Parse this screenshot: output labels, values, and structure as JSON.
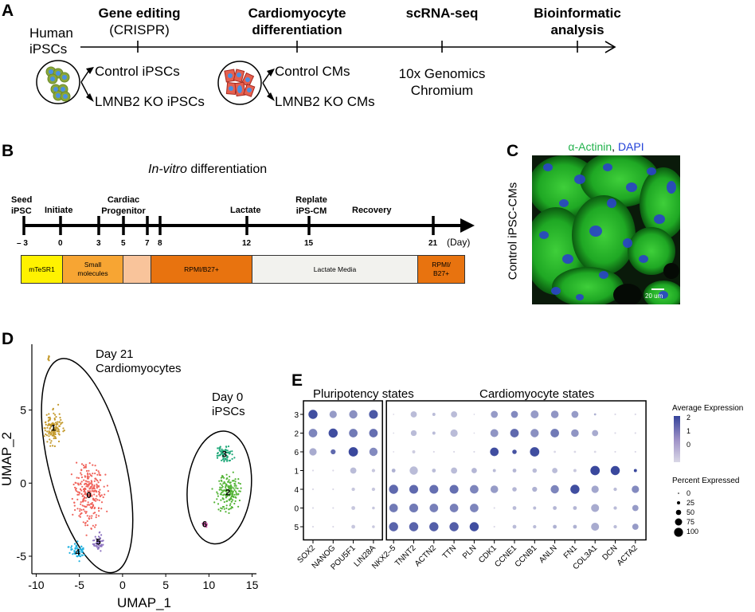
{
  "figure": {
    "panels": [
      "A",
      "B",
      "C",
      "D",
      "E"
    ]
  },
  "panelA": {
    "letter": "A",
    "start_label_1": "Human",
    "start_label_2": "iPSCs",
    "steps": [
      {
        "title_1": "Gene editing",
        "title_2": "(CRISPR)",
        "bold_lines": 1
      },
      {
        "title_1": "Cardiomyocyte",
        "title_2": "differentiation",
        "bold_lines": 2
      },
      {
        "title_1": "scRNA-seq",
        "title_2": "",
        "bold_lines": 1
      },
      {
        "title_1": "Bioinformatic",
        "title_2": "analysis",
        "bold_lines": 2
      }
    ],
    "ipsc_outcomes": [
      "Control iPSCs",
      "LMNB2 KO iPSCs"
    ],
    "cm_outcomes": [
      "Control CMs",
      "LMNB2 KO CMs"
    ],
    "seq_platform_1": "10x Genomics",
    "seq_platform_2": "Chromium"
  },
  "panelB": {
    "letter": "B",
    "title_italic": "In-vitro",
    "title_rest": " differentiation",
    "events": [
      {
        "l1": "Seed",
        "l2": "iPSC"
      },
      {
        "l1": "",
        "l2": "Initiate"
      },
      {
        "l1": "Cardiac",
        "l2": "Progenitor"
      },
      {
        "l1": "",
        "l2": "Lactate"
      },
      {
        "l1": "Replate",
        "l2": "iPS-CM"
      },
      {
        "l1": "",
        "l2": "Recovery"
      }
    ],
    "days": [
      "– 3",
      "0",
      "3",
      "5",
      "7",
      "8",
      "12",
      "15",
      "21"
    ],
    "day_unit": "(Day)",
    "media": [
      {
        "label_1": "mTeSR1",
        "label_2": "",
        "color": "#fff200"
      },
      {
        "label_1": "Small",
        "label_2": "molecules",
        "color": "#f7a533"
      },
      {
        "label_1": "",
        "label_2": "",
        "color": "#f9c49b"
      },
      {
        "label_1": "RPMI/B27+",
        "label_2": "",
        "color": "#e8730f"
      },
      {
        "label_1": "Lactate Media",
        "label_2": "",
        "color": "#f2f2ee"
      },
      {
        "label_1": "RPMI/",
        "label_2": "B27+",
        "color": "#e8730f"
      }
    ]
  },
  "panelC": {
    "letter": "C",
    "stain_1": "α-Actinin",
    "stain_sep": ", ",
    "stain_2": "DAPI",
    "stain_1_color": "#22b24c",
    "stain_2_color": "#1f3fd8",
    "row_label": "Control iPSC-CMs",
    "scale_bar": "20 um"
  },
  "panelD": {
    "letter": "D",
    "group_1_l1": "Day 21",
    "group_1_l2": "Cardiomyocytes",
    "group_2_l1": "Day 0",
    "group_2_l2": "iPSCs"
  },
  "panelE": {
    "letter": "E",
    "group_1": "Pluripotency states",
    "group_2": "Cardiomyocyte states",
    "legend_expr_title": "Average Expression",
    "legend_expr_ticks": [
      "2",
      "1",
      "0"
    ],
    "legend_pct_title": "Percent Expressed",
    "legend_pct_ticks": [
      "0",
      "25",
      "50",
      "75",
      "100"
    ]
  },
  "chart_data": [
    {
      "type": "scatter",
      "title": "UMAP of scRNA-seq clusters",
      "xlabel": "UMAP_1",
      "ylabel": "UMAP_2",
      "xlim": [
        -10.5,
        15.5
      ],
      "ylim": [
        -6.2,
        9.5
      ],
      "xticks": [
        -10,
        -5,
        0,
        5,
        10,
        15
      ],
      "yticks": [
        -5,
        0,
        5
      ],
      "grid": false,
      "clusters": [
        {
          "id": "0",
          "color": "#f0645c",
          "center": [
            -3.9,
            -0.8
          ],
          "spread": [
            1.4,
            1.7
          ],
          "n": 260
        },
        {
          "id": "1",
          "color": "#c49a2c",
          "center": [
            -8.0,
            3.8
          ],
          "spread": [
            0.9,
            1.0
          ],
          "n": 130
        },
        {
          "id": "2",
          "color": "#53b436",
          "center": [
            12.2,
            -0.6
          ],
          "spread": [
            1.2,
            1.2
          ],
          "n": 170
        },
        {
          "id": "3",
          "color": "#21a97a",
          "center": [
            11.8,
            2.0
          ],
          "spread": [
            0.8,
            0.5
          ],
          "n": 70
        },
        {
          "id": "4",
          "color": "#1fb1e0",
          "center": [
            -5.2,
            -4.7
          ],
          "spread": [
            0.8,
            0.5
          ],
          "n": 60
        },
        {
          "id": "5",
          "color": "#8c72c0",
          "center": [
            -2.8,
            -4.0
          ],
          "spread": [
            0.5,
            0.6
          ],
          "n": 50
        },
        {
          "id": "6",
          "color": "#e062b8",
          "center": [
            9.5,
            -2.8
          ],
          "spread": [
            0.25,
            0.2
          ],
          "n": 18
        }
      ],
      "annotations": [
        "Day 21 Cardiomyocytes",
        "Day 0 iPSCs"
      ]
    },
    {
      "type": "dotplot",
      "title": "",
      "xlabel": "",
      "ylabel": "",
      "groups": [
        {
          "name": "Pluripotency states",
          "genes": [
            "SOX2",
            "NANOG",
            "POU5F1",
            "LIN28A"
          ]
        },
        {
          "name": "Cardiomyocyte states",
          "genes": [
            "NKX2–5",
            "TNNT2",
            "ACTN2",
            "TTN",
            "PLN",
            "CDK1",
            "CCNE1",
            "CCNB1",
            "ANLN",
            "FN1",
            "COL3A1",
            "DCN",
            "ACTA2"
          ]
        }
      ],
      "genes": [
        "SOX2",
        "NANOG",
        "POU5F1",
        "LIN28A",
        "NKX2–5",
        "TNNT2",
        "ACTN2",
        "TTN",
        "PLN",
        "CDK1",
        "CCNE1",
        "CCNB1",
        "ANLN",
        "FN1",
        "COL3A1",
        "DCN",
        "ACTA2"
      ],
      "clusters": [
        "3",
        "2",
        "6",
        "1",
        "4",
        "0",
        "5"
      ],
      "percent_expressed": [
        [
          85,
          55,
          70,
          80,
          2,
          40,
          10,
          40,
          2,
          50,
          50,
          65,
          60,
          50,
          5,
          3,
          3
        ],
        [
          75,
          85,
          75,
          75,
          2,
          35,
          10,
          55,
          2,
          65,
          75,
          70,
          75,
          60,
          40,
          3,
          3
        ],
        [
          55,
          25,
          90,
          70,
          2,
          10,
          3,
          3,
          3,
          75,
          20,
          90,
          5,
          5,
          5,
          3,
          3
        ],
        [
          3,
          3,
          40,
          12,
          15,
          70,
          15,
          40,
          30,
          10,
          15,
          20,
          30,
          10,
          90,
          85,
          10
        ],
        [
          3,
          3,
          12,
          12,
          85,
          80,
          80,
          80,
          75,
          60,
          20,
          25,
          70,
          85,
          55,
          12,
          55
        ],
        [
          3,
          3,
          15,
          8,
          75,
          80,
          75,
          75,
          75,
          3,
          15,
          10,
          15,
          15,
          65,
          12,
          40
        ],
        [
          3,
          3,
          15,
          8,
          85,
          85,
          85,
          85,
          85,
          3,
          15,
          12,
          15,
          15,
          65,
          12,
          40
        ]
      ],
      "avg_expression": [
        [
          2.0,
          0.6,
          0.8,
          1.8,
          -0.5,
          0.0,
          0.0,
          0.0,
          -0.5,
          0.6,
          0.9,
          0.6,
          0.7,
          0.6,
          0.2,
          -0.5,
          -0.5
        ],
        [
          1.0,
          2.0,
          1.2,
          1.4,
          -0.5,
          0.0,
          0.0,
          0.0,
          -0.5,
          0.7,
          1.5,
          0.8,
          1.2,
          0.7,
          0.3,
          -0.5,
          -0.5
        ],
        [
          0.3,
          1.5,
          2.1,
          0.9,
          -0.5,
          -0.3,
          -0.5,
          -0.5,
          -0.5,
          2.0,
          1.9,
          2.0,
          -0.5,
          -0.5,
          -0.5,
          -0.5,
          -0.5
        ],
        [
          -0.5,
          -0.5,
          0.0,
          -0.2,
          0.2,
          0.0,
          0.0,
          0.0,
          0.1,
          0.0,
          0.1,
          0.0,
          0.0,
          -0.2,
          2.1,
          2.1,
          2.1
        ],
        [
          -0.5,
          -0.5,
          -0.2,
          -0.2,
          1.5,
          1.5,
          1.4,
          1.4,
          1.0,
          0.6,
          0.1,
          0.2,
          1.0,
          2.0,
          0.4,
          0.0,
          0.9
        ],
        [
          -0.5,
          -0.5,
          -0.2,
          -0.2,
          1.2,
          1.2,
          1.1,
          1.1,
          1.0,
          -0.5,
          0.0,
          0.0,
          0.1,
          0.1,
          0.3,
          0.0,
          0.6
        ],
        [
          -0.5,
          -0.5,
          -0.2,
          -0.2,
          1.6,
          1.6,
          1.7,
          1.7,
          2.0,
          -0.5,
          0.0,
          0.0,
          0.2,
          0.2,
          0.3,
          0.0,
          0.6
        ]
      ],
      "color_scale": {
        "low": "#d9d7e6",
        "high": "#34439a",
        "range": [
          -0.5,
          2.2
        ]
      },
      "legend_position": "right"
    }
  ]
}
